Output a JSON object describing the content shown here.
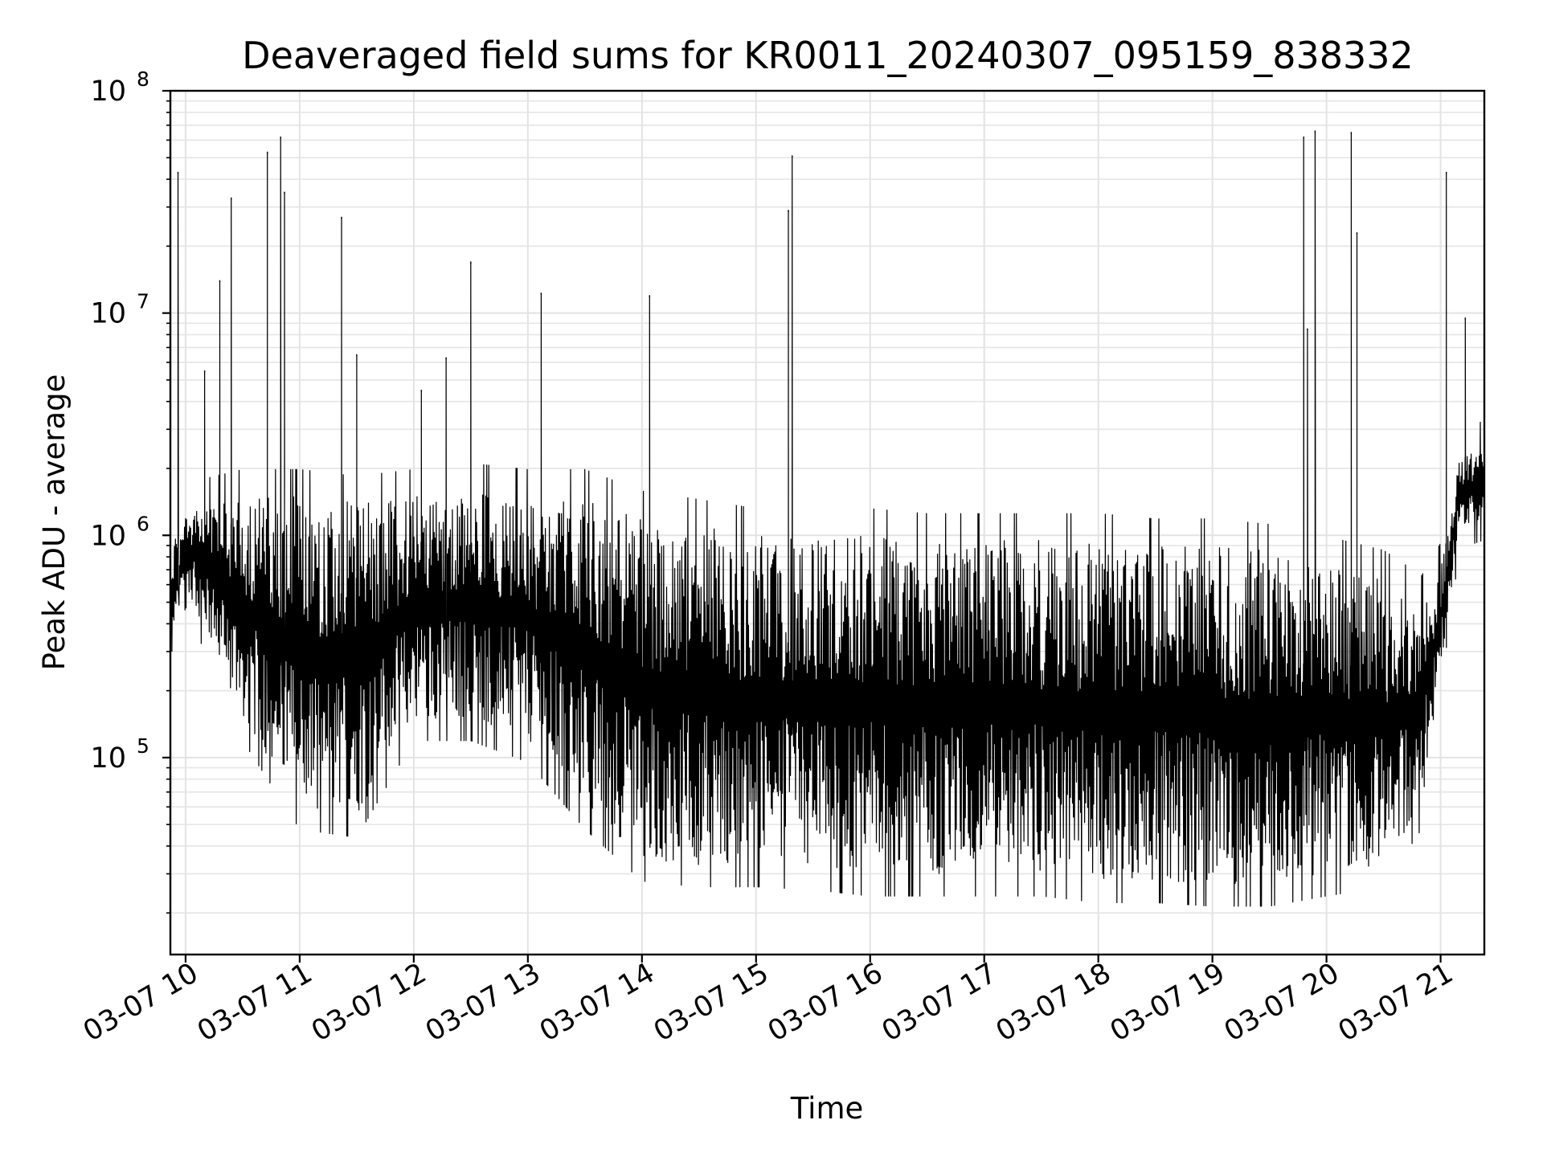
{
  "chart_data": {
    "type": "line",
    "title": "Deaveraged field sums for KR0011_20240307_095159_838332",
    "xlabel": "Time",
    "ylabel": "Peak ADU - average",
    "yscale": "log",
    "ylim": [
      13000,
      100000000
    ],
    "xlim": [
      "2024-03-07 09:52",
      "2024-03-07 21:23"
    ],
    "grid": true,
    "x_ticks": [
      "03-07 10",
      "03-07 11",
      "03-07 12",
      "03-07 13",
      "03-07 14",
      "03-07 15",
      "03-07 16",
      "03-07 17",
      "03-07 18",
      "03-07 19",
      "03-07 20",
      "03-07 21"
    ],
    "y_ticks": [
      {
        "base": "10",
        "exp": "5",
        "value": 100000
      },
      {
        "base": "10",
        "exp": "6",
        "value": 1000000
      },
      {
        "base": "10",
        "exp": "7",
        "value": 10000000
      },
      {
        "base": "10",
        "exp": "8",
        "value": 100000000
      }
    ],
    "color": "#000000",
    "series": [
      {
        "envelope": {
          "x": [
            "2024-03-07 09:52",
            "2024-03-07 10:00",
            "2024-03-07 10:30",
            "2024-03-07 11:00",
            "2024-03-07 11:30",
            "2024-03-07 12:00",
            "2024-03-07 12:30",
            "2024-03-07 13:00",
            "2024-03-07 13:30",
            "2024-03-07 14:00",
            "2024-03-07 14:30",
            "2024-03-07 15:00",
            "2024-03-07 15:30",
            "2024-03-07 16:00",
            "2024-03-07 16:30",
            "2024-03-07 17:00",
            "2024-03-07 17:30",
            "2024-03-07 18:00",
            "2024-03-07 18:30",
            "2024-03-07 19:00",
            "2024-03-07 19:30",
            "2024-03-07 20:00",
            "2024-03-07 20:30",
            "2024-03-07 20:50",
            "2024-03-07 21:00",
            "2024-03-07 21:10",
            "2024-03-07 21:23"
          ],
          "y_low": [
            250000,
            600000,
            150000,
            60000,
            55000,
            150000,
            150000,
            120000,
            60000,
            35000,
            33000,
            33000,
            32000,
            30000,
            30000,
            30000,
            30000,
            28000,
            28000,
            27000,
            27000,
            30000,
            33000,
            60000,
            250000,
            1100000,
            1200000
          ],
          "y_high": [
            900000,
            1300000,
            1500000,
            1500000,
            1400000,
            1500000,
            1600000,
            1500000,
            1500000,
            1200000,
            1100000,
            1000000,
            1000000,
            1000000,
            950000,
            950000,
            950000,
            950000,
            900000,
            900000,
            850000,
            750000,
            650000,
            500000,
            700000,
            2200000,
            2500000
          ]
        },
        "spikes": [
          {
            "x": "2024-03-07 09:56",
            "y": 43000000
          },
          {
            "x": "2024-03-07 10:10",
            "y": 5500000
          },
          {
            "x": "2024-03-07 10:18",
            "y": 14000000
          },
          {
            "x": "2024-03-07 10:24",
            "y": 33000000
          },
          {
            "x": "2024-03-07 10:43",
            "y": 53000000
          },
          {
            "x": "2024-03-07 10:50",
            "y": 62000000
          },
          {
            "x": "2024-03-07 10:52",
            "y": 35000000
          },
          {
            "x": "2024-03-07 11:22",
            "y": 27000000
          },
          {
            "x": "2024-03-07 11:30",
            "y": 6500000
          },
          {
            "x": "2024-03-07 12:04",
            "y": 4500000
          },
          {
            "x": "2024-03-07 12:17",
            "y": 6300000
          },
          {
            "x": "2024-03-07 12:30",
            "y": 17000000
          },
          {
            "x": "2024-03-07 13:07",
            "y": 12300000
          },
          {
            "x": "2024-03-07 14:04",
            "y": 12000000
          },
          {
            "x": "2024-03-07 15:17",
            "y": 29000000
          },
          {
            "x": "2024-03-07 15:19",
            "y": 51000000
          },
          {
            "x": "2024-03-07 19:48",
            "y": 62000000
          },
          {
            "x": "2024-03-07 19:50",
            "y": 8500000
          },
          {
            "x": "2024-03-07 19:54",
            "y": 66000000
          },
          {
            "x": "2024-03-07 20:13",
            "y": 65000000
          },
          {
            "x": "2024-03-07 20:16",
            "y": 23000000
          },
          {
            "x": "2024-03-07 21:03",
            "y": 43000000
          },
          {
            "x": "2024-03-07 21:13",
            "y": 9500000
          }
        ]
      }
    ]
  }
}
